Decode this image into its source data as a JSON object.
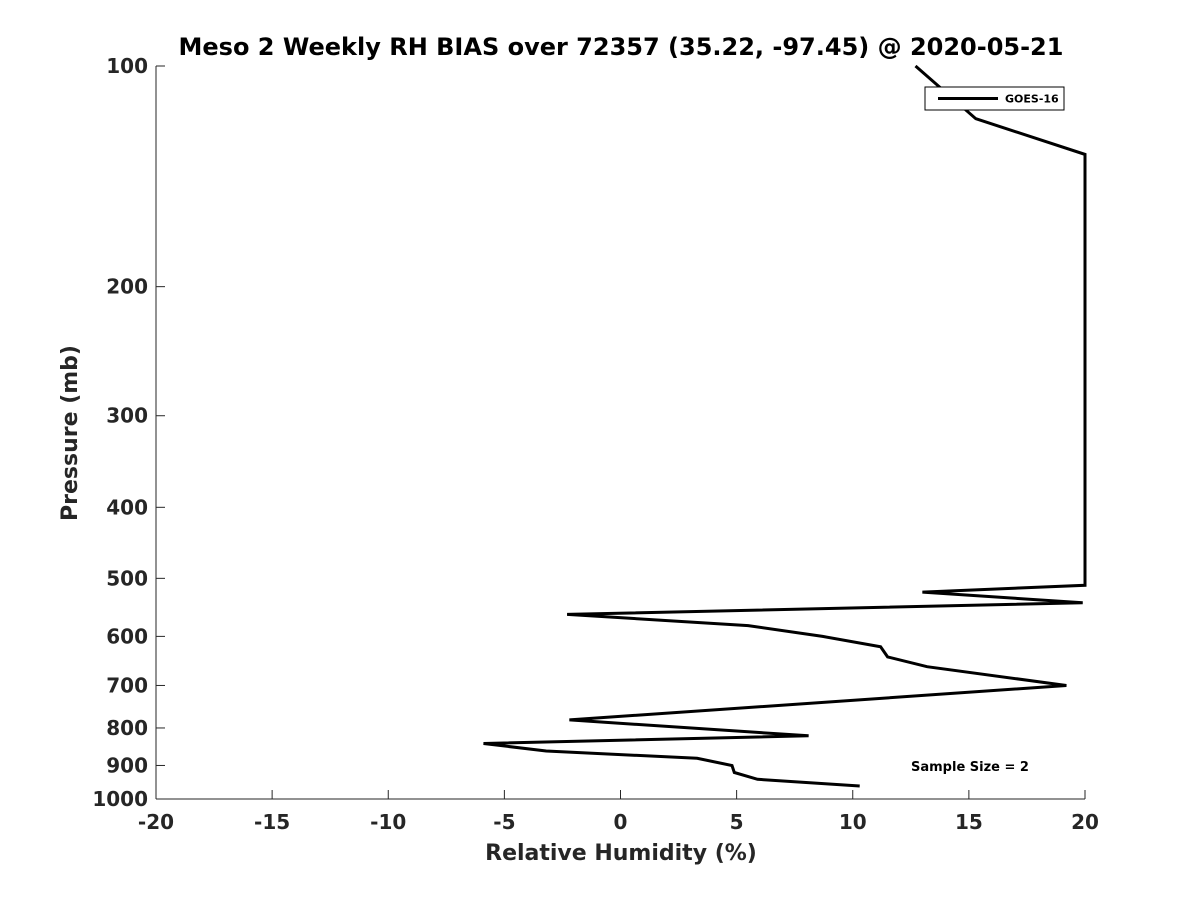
{
  "chart_data": {
    "type": "line",
    "title": "Meso 2 Weekly RH BIAS over 72357 (35.22, -97.45) @ 2020-05-21",
    "xlabel": "Relative Humidity (%)",
    "ylabel": "Pressure (mb)",
    "xlim": [
      -20,
      20
    ],
    "ylim": [
      100,
      1000
    ],
    "y_scale": "log",
    "y_reversed": true,
    "xticks": [
      -20,
      -15,
      -10,
      -5,
      0,
      5,
      10,
      15,
      20
    ],
    "xtick_labels": [
      "-20",
      "-15",
      "-10",
      "-5",
      "0",
      "5",
      "10",
      "15",
      "20"
    ],
    "yticks": [
      100,
      200,
      300,
      400,
      500,
      600,
      700,
      800,
      900,
      1000
    ],
    "ytick_labels": [
      "100",
      "200",
      "300",
      "400",
      "500",
      "600",
      "700",
      "800",
      "900",
      "1000"
    ],
    "grid": false,
    "legend_position": "top-right",
    "series": [
      {
        "name": "GOES-16",
        "color": "#000000",
        "points": [
          {
            "x": 12.7,
            "y": 100
          },
          {
            "x": 15.3,
            "y": 118
          },
          {
            "x": 20.0,
            "y": 132
          },
          {
            "x": 20.0,
            "y": 511
          },
          {
            "x": 13.0,
            "y": 522
          },
          {
            "x": 19.9,
            "y": 540
          },
          {
            "x": -2.3,
            "y": 560
          },
          {
            "x": 5.5,
            "y": 580
          },
          {
            "x": 8.7,
            "y": 600
          },
          {
            "x": 11.2,
            "y": 620
          },
          {
            "x": 11.5,
            "y": 640
          },
          {
            "x": 13.2,
            "y": 660
          },
          {
            "x": 19.2,
            "y": 700
          },
          {
            "x": -2.2,
            "y": 780
          },
          {
            "x": 8.1,
            "y": 820
          },
          {
            "x": -5.9,
            "y": 840
          },
          {
            "x": -3.2,
            "y": 860
          },
          {
            "x": 3.3,
            "y": 880
          },
          {
            "x": 4.8,
            "y": 900
          },
          {
            "x": 4.9,
            "y": 920
          },
          {
            "x": 5.9,
            "y": 940
          },
          {
            "x": 10.3,
            "y": 960
          }
        ]
      }
    ],
    "annotations": [
      {
        "text": "Sample Size = 2"
      }
    ]
  }
}
